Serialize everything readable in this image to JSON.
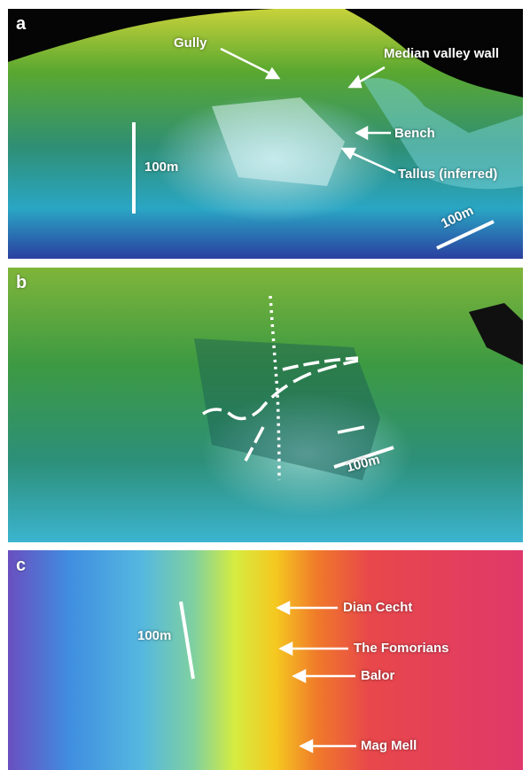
{
  "panels": {
    "a": {
      "label": "a",
      "annotations": {
        "gully": "Gully",
        "median_valley_wall": "Median valley wall",
        "bench": "Bench",
        "tallus": "Tallus (inferred)"
      },
      "scale_vertical": "100m",
      "scale_horizontal": "100m"
    },
    "b": {
      "label": "b",
      "scale": "100m"
    },
    "c": {
      "label": "c",
      "annotations": {
        "dian_cecht": "Dian Cecht",
        "the_fomorians": "The Fomorians",
        "balor": "Balor",
        "mag_mell": "Mag Mell"
      },
      "scale": "100m"
    }
  },
  "colors": {
    "annotation": "#ffffff",
    "background": "#ffffff"
  }
}
